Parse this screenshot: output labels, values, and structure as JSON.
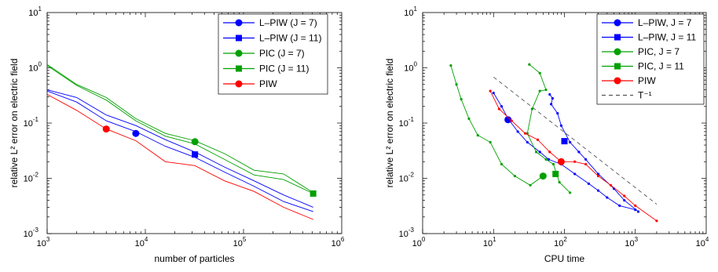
{
  "chart_data": [
    {
      "type": "line",
      "xscale": "log",
      "yscale": "log",
      "xlim": [
        1000,
        1000000
      ],
      "ylim": [
        0.001,
        10
      ],
      "xlabel": "number of particles",
      "ylabel": "relative L² error on electric field",
      "xticks": [
        {
          "value": 1000,
          "base": "10",
          "exp": "3"
        },
        {
          "value": 10000,
          "base": "10",
          "exp": "4"
        },
        {
          "value": 100000,
          "base": "10",
          "exp": "5"
        },
        {
          "value": 1000000,
          "base": "10",
          "exp": "6"
        }
      ],
      "yticks": [
        {
          "value": 0.001,
          "base": "10",
          "exp": "-3"
        },
        {
          "value": 0.01,
          "base": "10",
          "exp": "-2"
        },
        {
          "value": 0.1,
          "base": "10",
          "exp": "-1"
        },
        {
          "value": 1,
          "base": "10",
          "exp": "0"
        },
        {
          "value": 10,
          "base": "10",
          "exp": "1"
        }
      ],
      "legend_position": "top-right",
      "series": [
        {
          "name": "L–PIW (J = 7)",
          "color": "#0000ff",
          "marker": "circle",
          "x": [
            1000,
            2000,
            4000,
            8000,
            16000,
            32000,
            64000,
            128000,
            256000,
            512000
          ],
          "y": [
            0.38,
            0.24,
            0.11,
            0.07,
            0.038,
            0.024,
            0.013,
            0.0072,
            0.0038,
            0.0025
          ],
          "marker_point": [
            8000,
            0.065
          ]
        },
        {
          "name": "L–PIW (J = 11)",
          "color": "#0000ff",
          "marker": "square",
          "x": [
            1000,
            2000,
            4000,
            8000,
            16000,
            32000,
            64000,
            128000,
            256000,
            512000
          ],
          "y": [
            0.4,
            0.29,
            0.14,
            0.09,
            0.05,
            0.03,
            0.016,
            0.009,
            0.005,
            0.003
          ],
          "marker_point": [
            32000,
            0.027
          ]
        },
        {
          "name": "PIC (J = 7)",
          "color": "#00a000",
          "marker": "circle",
          "x": [
            1000,
            2000,
            4000,
            8000,
            16000,
            32000,
            64000,
            128000,
            256000,
            512000
          ],
          "y": [
            1.15,
            0.5,
            0.29,
            0.12,
            0.065,
            0.048,
            0.028,
            0.014,
            0.012,
            0.0055
          ],
          "marker_point": [
            32000,
            0.046
          ]
        },
        {
          "name": "PIC (J = 11)",
          "color": "#00a000",
          "marker": "square",
          "x": [
            1000,
            2000,
            4000,
            8000,
            16000,
            32000,
            64000,
            128000,
            256000,
            512000
          ],
          "y": [
            1.1,
            0.48,
            0.26,
            0.11,
            0.058,
            0.042,
            0.022,
            0.0115,
            0.0095,
            0.0053
          ],
          "marker_point": [
            512000,
            0.0053
          ]
        },
        {
          "name": "PIW",
          "color": "#ff0000",
          "marker": "circle",
          "x": [
            1000,
            2000,
            4000,
            8000,
            16000,
            32000,
            64000,
            128000,
            256000,
            512000
          ],
          "y": [
            0.33,
            0.17,
            0.078,
            0.048,
            0.02,
            0.017,
            0.009,
            0.0058,
            0.003,
            0.0018
          ],
          "marker_point": [
            4000,
            0.078
          ]
        }
      ]
    },
    {
      "type": "line",
      "xscale": "log",
      "yscale": "log",
      "xlim": [
        1,
        10000
      ],
      "ylim": [
        0.001,
        10
      ],
      "xlabel": "CPU time",
      "ylabel": "relative L² error on electric field",
      "xticks": [
        {
          "value": 1,
          "base": "10",
          "exp": "0"
        },
        {
          "value": 10,
          "base": "10",
          "exp": "1"
        },
        {
          "value": 100,
          "base": "10",
          "exp": "2"
        },
        {
          "value": 1000,
          "base": "10",
          "exp": "3"
        },
        {
          "value": 10000,
          "base": "10",
          "exp": "4"
        }
      ],
      "yticks": [
        {
          "value": 0.001,
          "base": "10",
          "exp": "-3"
        },
        {
          "value": 0.01,
          "base": "10",
          "exp": "-2"
        },
        {
          "value": 0.1,
          "base": "10",
          "exp": "-1"
        },
        {
          "value": 1,
          "base": "10",
          "exp": "0"
        },
        {
          "value": 10,
          "base": "10",
          "exp": "1"
        }
      ],
      "legend_position": "top-right",
      "series": [
        {
          "name": "L–PIW, J = 7",
          "color": "#0000ff",
          "marker": "circle",
          "dashed": false,
          "x": [
            10,
            13,
            16,
            22,
            30,
            45,
            60,
            90,
            140,
            220,
            300,
            400,
            600,
            1000
          ],
          "y": [
            0.35,
            0.2,
            0.12,
            0.07,
            0.045,
            0.03,
            0.022,
            0.018,
            0.012,
            0.008,
            0.006,
            0.0045,
            0.0032,
            0.0027
          ],
          "marker_point": [
            16,
            0.115
          ]
        },
        {
          "name": "L–PIW, J = 11",
          "color": "#0000ff",
          "marker": "square",
          "dashed": false,
          "x": [
            62,
            68,
            65,
            80,
            90,
            120,
            160,
            200,
            300,
            500,
            700,
            1100
          ],
          "y": [
            0.33,
            0.28,
            0.22,
            0.15,
            0.09,
            0.045,
            0.03,
            0.022,
            0.012,
            0.0065,
            0.004,
            0.0025
          ],
          "marker_point": [
            100,
            0.047
          ]
        },
        {
          "name": "PIC, J = 7",
          "color": "#00a000",
          "marker": "circle",
          "dashed": false,
          "x": [
            2.5,
            3,
            3.5,
            4.5,
            6,
            9,
            13,
            20,
            33,
            50
          ],
          "y": [
            1.1,
            0.5,
            0.27,
            0.12,
            0.06,
            0.045,
            0.018,
            0.011,
            0.0075,
            0.011
          ],
          "marker_point": [
            50,
            0.011
          ]
        },
        {
          "name": "PIC, J = 11",
          "color": "#00a000",
          "marker": "square",
          "dashed": false,
          "x": [
            32,
            45,
            55,
            45,
            35,
            30,
            40,
            55,
            70,
            85,
            120
          ],
          "y": [
            1.15,
            0.8,
            0.4,
            0.38,
            0.18,
            0.065,
            0.03,
            0.022,
            0.018,
            0.0085,
            0.0055
          ],
          "marker_point": [
            75,
            0.012
          ]
        },
        {
          "name": "PIW",
          "color": "#ff0000",
          "marker": "circle",
          "dashed": false,
          "x": [
            9,
            12,
            18,
            28,
            42,
            62,
            90,
            140,
            200,
            300,
            450,
            700,
            1000,
            2000
          ],
          "y": [
            0.38,
            0.18,
            0.11,
            0.065,
            0.05,
            0.03,
            0.02,
            0.02,
            0.018,
            0.011,
            0.0075,
            0.0048,
            0.0032,
            0.0017
          ],
          "marker_point": [
            90,
            0.02
          ]
        },
        {
          "name": "T⁻¹",
          "color": "#555555",
          "marker": "none",
          "dashed": true,
          "x": [
            10,
            2000
          ],
          "y": [
            0.68,
            0.0034
          ]
        }
      ]
    }
  ]
}
